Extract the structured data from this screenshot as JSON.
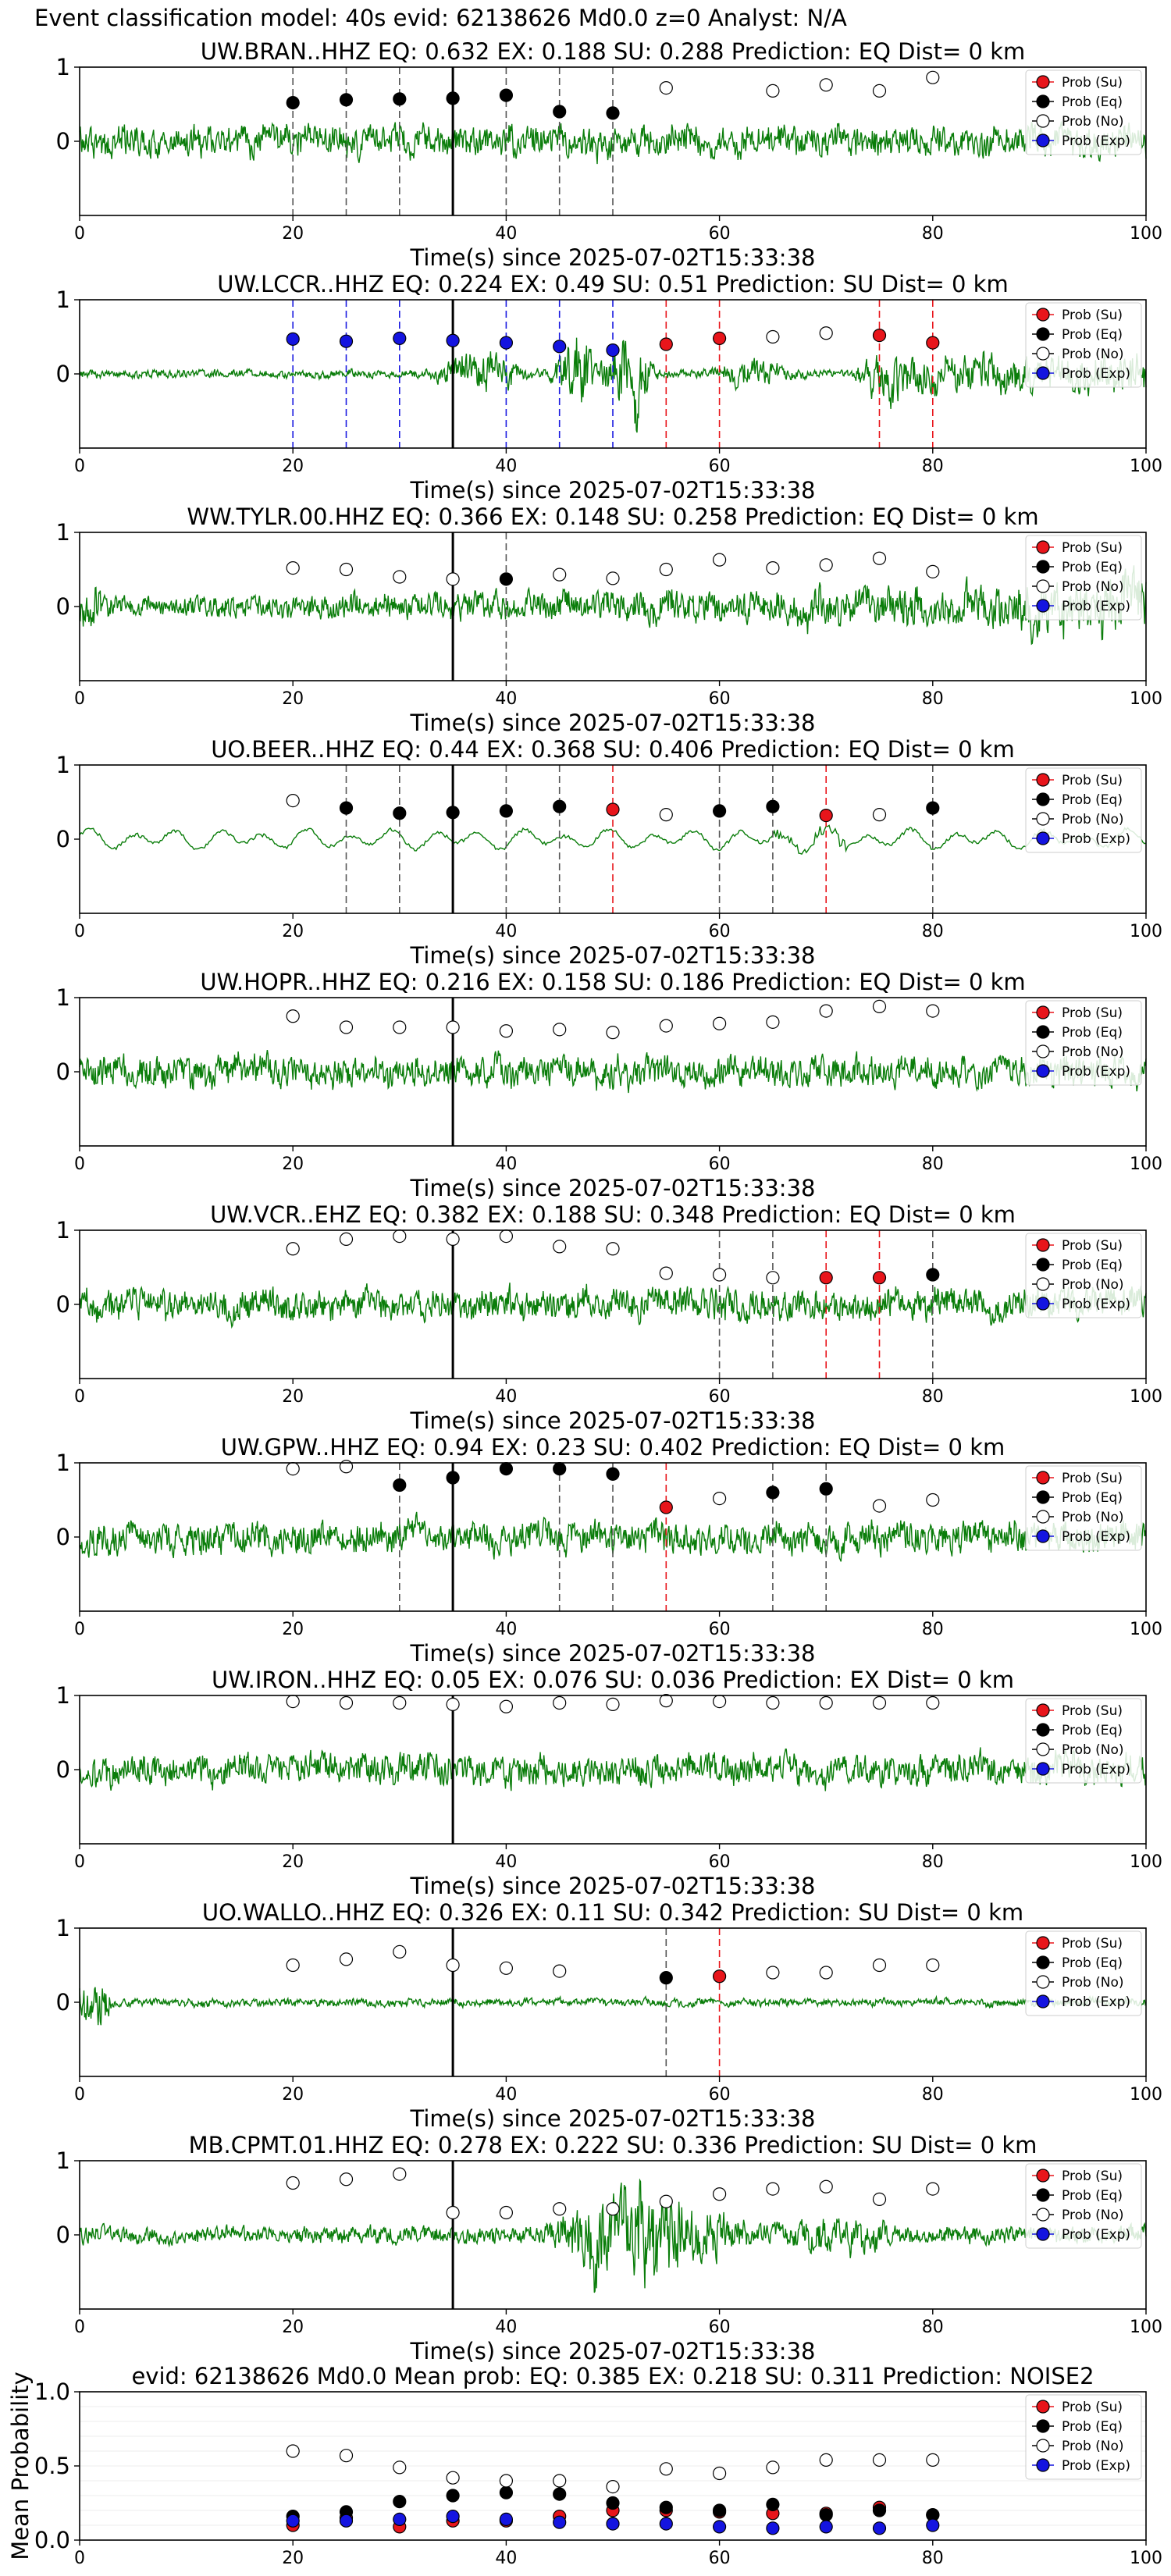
{
  "figure": {
    "title": "Event classification model: 40s evid: 62138626 Md0.0 z=0 Analyst: N/A"
  },
  "legend_labels": [
    "Prob (Su)",
    "Prob (Eq)",
    "Prob (No)",
    "Prob (Exp)"
  ],
  "colors": {
    "su": "#e8151b",
    "eq": "#000000",
    "no": "#ffffff",
    "exp": "#1414e0",
    "waveform": "#0a7d0a",
    "eq_line": "#555555",
    "su_line": "#e8151b",
    "exp_line": "#1a1ae0",
    "origin_line": "#000000"
  },
  "chart_data": [
    {
      "type": "line",
      "station_label": "UW.BRAN..HHZ",
      "title": "UW.BRAN..HHZ   EQ: 0.632  EX: 0.188  SU: 0.288   Prediction: EQ    Dist= 0 km",
      "xlabel": "Time(s) since 2025-07-02T15:33:38",
      "xlim": [
        0,
        100
      ],
      "ylim": [
        -1,
        1
      ],
      "xticks": [
        0,
        20,
        40,
        60,
        80,
        100
      ],
      "yticks": [
        0,
        1
      ],
      "origin_time": 35,
      "waveform_style": "noise",
      "legend": "top-right",
      "points": [
        [
          20,
          0.52,
          "eq"
        ],
        [
          25,
          0.56,
          "eq"
        ],
        [
          30,
          0.57,
          "eq"
        ],
        [
          35,
          0.58,
          "eq"
        ],
        [
          40,
          0.62,
          "eq"
        ],
        [
          45,
          0.4,
          "eq"
        ],
        [
          50,
          0.38,
          "eq"
        ],
        [
          55,
          0.72,
          "no"
        ],
        [
          65,
          0.68,
          "no"
        ],
        [
          70,
          0.76,
          "no"
        ],
        [
          75,
          0.68,
          "no"
        ],
        [
          80,
          0.86,
          "no"
        ]
      ],
      "picks": [
        [
          20,
          "eq"
        ],
        [
          25,
          "eq"
        ],
        [
          30,
          "eq"
        ],
        [
          40,
          "eq"
        ],
        [
          45,
          "eq"
        ],
        [
          50,
          "eq"
        ]
      ]
    },
    {
      "type": "line",
      "station_label": "UW.LCCR..HHZ",
      "title": "UW.LCCR..HHZ   EQ: 0.224  EX: 0.49  SU: 0.51   Prediction: SU    Dist= 0 km",
      "xlabel": "Time(s) since 2025-07-02T15:33:38",
      "xlim": [
        0,
        100
      ],
      "ylim": [
        -1,
        1
      ],
      "xticks": [
        0,
        20,
        40,
        60,
        80,
        100
      ],
      "yticks": [
        0,
        1
      ],
      "origin_time": 35,
      "waveform_style": "bursts",
      "legend": "top-right",
      "points": [
        [
          20,
          0.47,
          "exp"
        ],
        [
          25,
          0.44,
          "exp"
        ],
        [
          30,
          0.48,
          "exp"
        ],
        [
          35,
          0.45,
          "exp"
        ],
        [
          40,
          0.42,
          "exp"
        ],
        [
          45,
          0.37,
          "exp"
        ],
        [
          50,
          0.32,
          "exp"
        ],
        [
          55,
          0.4,
          "su"
        ],
        [
          60,
          0.48,
          "su"
        ],
        [
          65,
          0.5,
          "no"
        ],
        [
          70,
          0.55,
          "no"
        ],
        [
          75,
          0.52,
          "su"
        ],
        [
          80,
          0.42,
          "su"
        ]
      ],
      "picks": [
        [
          20,
          "exp"
        ],
        [
          25,
          "exp"
        ],
        [
          30,
          "exp"
        ],
        [
          40,
          "exp"
        ],
        [
          45,
          "exp"
        ],
        [
          50,
          "exp"
        ],
        [
          55,
          "su"
        ],
        [
          60,
          "su"
        ],
        [
          75,
          "su"
        ],
        [
          80,
          "su"
        ]
      ]
    },
    {
      "type": "line",
      "station_label": "WW.TYLR.00.HHZ",
      "title": "WW.TYLR.00.HHZ   EQ: 0.366  EX: 0.148  SU: 0.258   Prediction: EQ    Dist= 0 km",
      "xlabel": "Time(s) since 2025-07-02T15:33:38",
      "xlim": [
        0,
        100
      ],
      "ylim": [
        -1,
        1
      ],
      "xticks": [
        0,
        20,
        40,
        60,
        80,
        100
      ],
      "yticks": [
        0,
        1
      ],
      "origin_time": 35,
      "waveform_style": "growing",
      "legend": "top-right",
      "points": [
        [
          20,
          0.52,
          "no"
        ],
        [
          25,
          0.5,
          "no"
        ],
        [
          30,
          0.4,
          "no"
        ],
        [
          35,
          0.37,
          "no"
        ],
        [
          40,
          0.37,
          "eq"
        ],
        [
          45,
          0.43,
          "no"
        ],
        [
          50,
          0.38,
          "no"
        ],
        [
          55,
          0.5,
          "no"
        ],
        [
          60,
          0.63,
          "no"
        ],
        [
          65,
          0.52,
          "no"
        ],
        [
          70,
          0.56,
          "no"
        ],
        [
          75,
          0.65,
          "no"
        ],
        [
          80,
          0.47,
          "no"
        ]
      ],
      "picks": [
        [
          40,
          "eq"
        ]
      ]
    },
    {
      "type": "line",
      "station_label": "UO.BEER..HHZ",
      "title": "UO.BEER..HHZ   EQ: 0.44  EX: 0.368  SU: 0.406   Prediction: EQ    Dist= 0 km",
      "xlabel": "Time(s) since 2025-07-02T15:33:38",
      "xlim": [
        0,
        100
      ],
      "ylim": [
        -1,
        1
      ],
      "xticks": [
        0,
        20,
        40,
        60,
        80,
        100
      ],
      "yticks": [
        0,
        1
      ],
      "origin_time": 35,
      "waveform_style": "smooth",
      "legend": "top-right",
      "points": [
        [
          20,
          0.52,
          "no"
        ],
        [
          25,
          0.42,
          "eq"
        ],
        [
          30,
          0.35,
          "eq"
        ],
        [
          35,
          0.36,
          "eq"
        ],
        [
          40,
          0.38,
          "eq"
        ],
        [
          45,
          0.44,
          "eq"
        ],
        [
          50,
          0.4,
          "su"
        ],
        [
          55,
          0.33,
          "no"
        ],
        [
          60,
          0.38,
          "eq"
        ],
        [
          65,
          0.44,
          "eq"
        ],
        [
          70,
          0.32,
          "su"
        ],
        [
          75,
          0.33,
          "no"
        ],
        [
          80,
          0.42,
          "eq"
        ]
      ],
      "picks": [
        [
          25,
          "eq"
        ],
        [
          30,
          "eq"
        ],
        [
          40,
          "eq"
        ],
        [
          45,
          "eq"
        ],
        [
          50,
          "su"
        ],
        [
          60,
          "eq"
        ],
        [
          65,
          "eq"
        ],
        [
          70,
          "su"
        ],
        [
          80,
          "eq"
        ]
      ]
    },
    {
      "type": "line",
      "station_label": "UW.HOPR..HHZ",
      "title": "UW.HOPR..HHZ   EQ: 0.216  EX: 0.158  SU: 0.186   Prediction: EQ    Dist= 0 km",
      "xlabel": "Time(s) since 2025-07-02T15:33:38",
      "xlim": [
        0,
        100
      ],
      "ylim": [
        -1,
        1
      ],
      "xticks": [
        0,
        20,
        40,
        60,
        80,
        100
      ],
      "yticks": [
        0,
        1
      ],
      "origin_time": 35,
      "waveform_style": "noise",
      "legend": "top-right",
      "points": [
        [
          20,
          0.75,
          "no"
        ],
        [
          25,
          0.6,
          "no"
        ],
        [
          30,
          0.6,
          "no"
        ],
        [
          35,
          0.6,
          "no"
        ],
        [
          40,
          0.55,
          "no"
        ],
        [
          45,
          0.57,
          "no"
        ],
        [
          50,
          0.53,
          "no"
        ],
        [
          55,
          0.62,
          "no"
        ],
        [
          60,
          0.65,
          "no"
        ],
        [
          65,
          0.67,
          "no"
        ],
        [
          70,
          0.82,
          "no"
        ],
        [
          75,
          0.88,
          "no"
        ],
        [
          80,
          0.82,
          "no"
        ]
      ],
      "picks": []
    },
    {
      "type": "line",
      "station_label": "UW.VCR..EHZ",
      "title": "UW.VCR..EHZ   EQ: 0.382  EX: 0.188  SU: 0.348   Prediction: EQ    Dist= 0 km",
      "xlabel": "Time(s) since 2025-07-02T15:33:38",
      "xlim": [
        0,
        100
      ],
      "ylim": [
        -1,
        1
      ],
      "xticks": [
        0,
        20,
        40,
        60,
        80,
        100
      ],
      "yticks": [
        0,
        1
      ],
      "origin_time": 35,
      "waveform_style": "noise",
      "legend": "top-right",
      "points": [
        [
          20,
          0.75,
          "no"
        ],
        [
          25,
          0.88,
          "no"
        ],
        [
          30,
          0.92,
          "no"
        ],
        [
          35,
          0.88,
          "no"
        ],
        [
          40,
          0.92,
          "no"
        ],
        [
          45,
          0.78,
          "no"
        ],
        [
          50,
          0.75,
          "no"
        ],
        [
          55,
          0.42,
          "no"
        ],
        [
          60,
          0.4,
          "no"
        ],
        [
          65,
          0.36,
          "no"
        ],
        [
          70,
          0.36,
          "su"
        ],
        [
          75,
          0.36,
          "su"
        ],
        [
          80,
          0.4,
          "eq"
        ]
      ],
      "picks": [
        [
          60,
          "eq"
        ],
        [
          65,
          "eq"
        ],
        [
          70,
          "su"
        ],
        [
          75,
          "su"
        ],
        [
          80,
          "eq"
        ]
      ]
    },
    {
      "type": "line",
      "station_label": "UW.GPW..HHZ",
      "title": "UW.GPW..HHZ   EQ: 0.94  EX: 0.23  SU: 0.402   Prediction: EQ    Dist= 0 km",
      "xlabel": "Time(s) since 2025-07-02T15:33:38",
      "xlim": [
        0,
        100
      ],
      "ylim": [
        -1,
        1
      ],
      "xticks": [
        0,
        20,
        40,
        60,
        80,
        100
      ],
      "yticks": [
        0,
        1
      ],
      "origin_time": 35,
      "waveform_style": "noise",
      "legend": "top-right",
      "points": [
        [
          20,
          0.92,
          "no"
        ],
        [
          25,
          0.95,
          "no"
        ],
        [
          30,
          0.7,
          "eq"
        ],
        [
          35,
          0.8,
          "eq"
        ],
        [
          40,
          0.92,
          "eq"
        ],
        [
          45,
          0.92,
          "eq"
        ],
        [
          50,
          0.85,
          "eq"
        ],
        [
          55,
          0.4,
          "su"
        ],
        [
          60,
          0.52,
          "no"
        ],
        [
          65,
          0.6,
          "eq"
        ],
        [
          70,
          0.65,
          "eq"
        ],
        [
          75,
          0.42,
          "no"
        ],
        [
          80,
          0.5,
          "no"
        ]
      ],
      "picks": [
        [
          30,
          "eq"
        ],
        [
          45,
          "eq"
        ],
        [
          50,
          "eq"
        ],
        [
          55,
          "su"
        ],
        [
          65,
          "eq"
        ],
        [
          70,
          "eq"
        ]
      ]
    },
    {
      "type": "line",
      "station_label": "UW.IRON..HHZ",
      "title": "UW.IRON..HHZ   EQ: 0.05  EX: 0.076  SU: 0.036   Prediction: EX    Dist= 0 km",
      "xlabel": "Time(s) since 2025-07-02T15:33:38",
      "xlim": [
        0,
        100
      ],
      "ylim": [
        -1,
        1
      ],
      "xticks": [
        0,
        20,
        40,
        60,
        80,
        100
      ],
      "yticks": [
        0,
        1
      ],
      "origin_time": 35,
      "waveform_style": "noise",
      "legend": "top-right",
      "points": [
        [
          20,
          0.92,
          "no"
        ],
        [
          25,
          0.9,
          "no"
        ],
        [
          30,
          0.9,
          "no"
        ],
        [
          35,
          0.88,
          "no"
        ],
        [
          40,
          0.85,
          "no"
        ],
        [
          45,
          0.9,
          "no"
        ],
        [
          50,
          0.88,
          "no"
        ],
        [
          55,
          0.93,
          "no"
        ],
        [
          60,
          0.92,
          "no"
        ],
        [
          65,
          0.9,
          "no"
        ],
        [
          70,
          0.9,
          "no"
        ],
        [
          75,
          0.9,
          "no"
        ],
        [
          80,
          0.9,
          "no"
        ]
      ],
      "picks": []
    },
    {
      "type": "line",
      "station_label": "UO.WALLO..HHZ",
      "title": "UO.WALLO..HHZ   EQ: 0.326  EX: 0.11  SU: 0.342   Prediction: SU    Dist= 0 km",
      "xlabel": "Time(s) since 2025-07-02T15:33:38",
      "xlim": [
        0,
        100
      ],
      "ylim": [
        -1,
        1
      ],
      "xticks": [
        0,
        20,
        40,
        60,
        80,
        100
      ],
      "yticks": [
        0,
        1
      ],
      "origin_time": 35,
      "waveform_style": "quiet",
      "legend": "top-right",
      "points": [
        [
          20,
          0.5,
          "no"
        ],
        [
          25,
          0.58,
          "no"
        ],
        [
          30,
          0.68,
          "no"
        ],
        [
          35,
          0.5,
          "no"
        ],
        [
          40,
          0.46,
          "no"
        ],
        [
          45,
          0.42,
          "no"
        ],
        [
          55,
          0.33,
          "eq"
        ],
        [
          60,
          0.35,
          "su"
        ],
        [
          65,
          0.4,
          "no"
        ],
        [
          70,
          0.4,
          "no"
        ],
        [
          75,
          0.5,
          "no"
        ],
        [
          80,
          0.5,
          "no"
        ]
      ],
      "picks": [
        [
          55,
          "eq"
        ],
        [
          60,
          "su"
        ]
      ]
    },
    {
      "type": "line",
      "station_label": "MB.CPMT.01.HHZ",
      "title": "MB.CPMT.01.HHZ   EQ: 0.278  EX: 0.222  SU: 0.336   Prediction: SU    Dist= 0 km",
      "xlabel": "Time(s) since 2025-07-02T15:33:38",
      "xlim": [
        0,
        100
      ],
      "ylim": [
        -1,
        1
      ],
      "xticks": [
        0,
        20,
        40,
        60,
        80,
        100
      ],
      "yticks": [
        0,
        1
      ],
      "origin_time": 35,
      "waveform_style": "bigburst",
      "legend": "top-right",
      "points": [
        [
          20,
          0.7,
          "no"
        ],
        [
          25,
          0.75,
          "no"
        ],
        [
          30,
          0.82,
          "no"
        ],
        [
          35,
          0.3,
          "no"
        ],
        [
          40,
          0.3,
          "no"
        ],
        [
          45,
          0.35,
          "no"
        ],
        [
          50,
          0.35,
          "no"
        ],
        [
          55,
          0.45,
          "no"
        ],
        [
          60,
          0.55,
          "no"
        ],
        [
          65,
          0.62,
          "no"
        ],
        [
          70,
          0.65,
          "no"
        ],
        [
          75,
          0.48,
          "no"
        ],
        [
          80,
          0.62,
          "no"
        ]
      ],
      "picks": []
    },
    {
      "type": "scatter",
      "title": "evid: 62138626  Md0.0   Mean prob:   EQ: 0.385  EX: 0.218  SU: 0.311   Prediction: NOISE2",
      "xlabel": "",
      "ylabel": "Mean Probability",
      "xlim": [
        0,
        100
      ],
      "ylim": [
        0,
        1
      ],
      "xticks": [
        0,
        20,
        40,
        60,
        80,
        100
      ],
      "yticks": [
        0.0,
        0.5,
        1.0
      ],
      "ytick_labels": [
        "0.0",
        "0.5",
        "1.0"
      ],
      "legend": "top-right",
      "series": [
        {
          "name": "Prob (Su)",
          "key": "su",
          "x": [
            20,
            25,
            30,
            35,
            40,
            45,
            50,
            55,
            60,
            65,
            70,
            75,
            80
          ],
          "values": [
            0.1,
            0.15,
            0.09,
            0.13,
            0.13,
            0.16,
            0.2,
            0.2,
            0.19,
            0.18,
            0.18,
            0.22,
            0.17
          ]
        },
        {
          "name": "Prob (Eq)",
          "key": "eq",
          "x": [
            20,
            25,
            30,
            35,
            40,
            45,
            50,
            55,
            60,
            65,
            70,
            75,
            80
          ],
          "values": [
            0.16,
            0.19,
            0.26,
            0.3,
            0.32,
            0.31,
            0.25,
            0.22,
            0.2,
            0.24,
            0.17,
            0.2,
            0.17
          ]
        },
        {
          "name": "Prob (No)",
          "key": "no",
          "x": [
            20,
            25,
            30,
            35,
            40,
            45,
            50,
            55,
            60,
            65,
            70,
            75,
            80
          ],
          "values": [
            0.6,
            0.57,
            0.49,
            0.42,
            0.4,
            0.4,
            0.36,
            0.48,
            0.45,
            0.49,
            0.54,
            0.54,
            0.54
          ]
        },
        {
          "name": "Prob (Exp)",
          "key": "exp",
          "x": [
            20,
            25,
            30,
            35,
            40,
            45,
            50,
            55,
            60,
            65,
            70,
            75,
            80
          ],
          "values": [
            0.13,
            0.13,
            0.14,
            0.16,
            0.14,
            0.12,
            0.11,
            0.11,
            0.09,
            0.08,
            0.09,
            0.08,
            0.1
          ]
        }
      ]
    }
  ]
}
